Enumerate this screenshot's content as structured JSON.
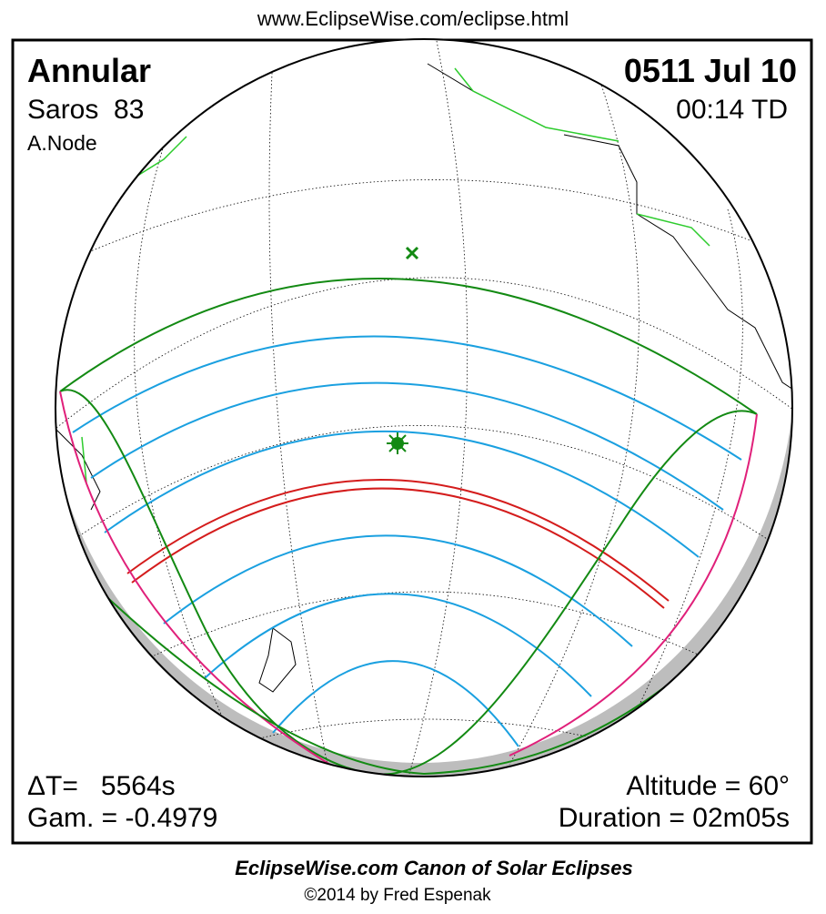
{
  "header": {
    "url": "www.EclipseWise.com/eclipse.html"
  },
  "panel": {
    "eclipse_type": "Annular",
    "saros": "Saros  83",
    "node": "A.Node",
    "date": "0511 Jul 10",
    "time": "00:14 TD",
    "delta_t": "ΔT=   5564s",
    "gamma": "Gam. = -0.4979",
    "altitude": "Altitude = 60°",
    "duration": "Duration = 02m05s"
  },
  "footer": {
    "title": "EclipseWise.com Canon of Solar Eclipses",
    "credit": "©2014 by Fred Espenak"
  }
}
